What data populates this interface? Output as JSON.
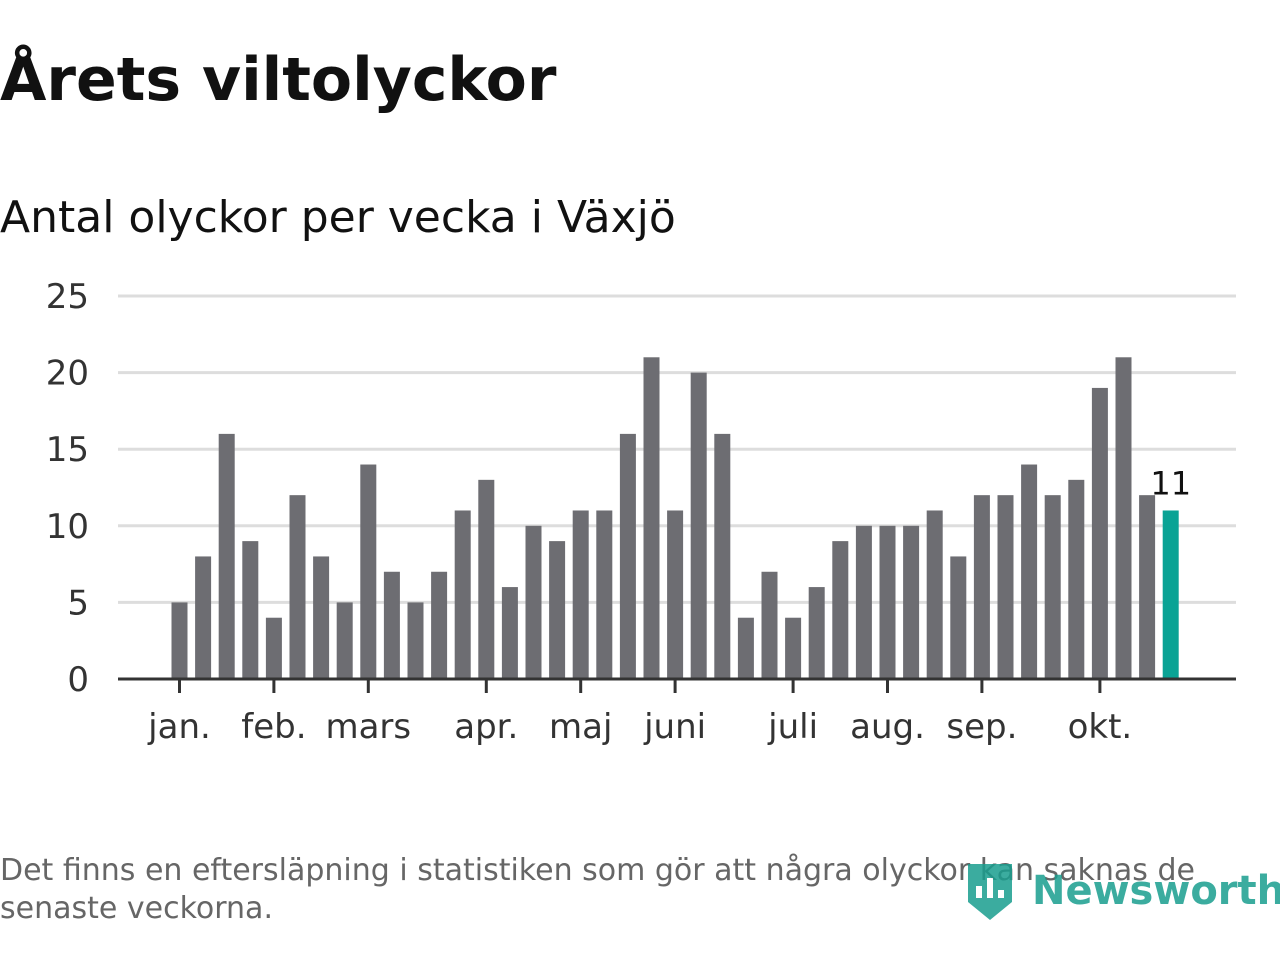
{
  "header": {
    "title": "Årets viltolyckor",
    "subtitle": "Antal olyckor per vecka i Växjö"
  },
  "chart_data": {
    "type": "bar",
    "title": "Årets viltolyckor",
    "subtitle": "Antal olyckor per vecka i Växjö",
    "xlabel": "",
    "ylabel": "",
    "ylim": [
      0,
      25
    ],
    "y_ticks": [
      0,
      5,
      10,
      15,
      20,
      25
    ],
    "grid": true,
    "legend": "none",
    "x_ticks": [
      {
        "label": "jan.",
        "bar_index": 0
      },
      {
        "label": "feb.",
        "bar_index": 4
      },
      {
        "label": "mars",
        "bar_index": 8
      },
      {
        "label": "apr.",
        "bar_index": 13
      },
      {
        "label": "maj",
        "bar_index": 17
      },
      {
        "label": "juni",
        "bar_index": 21
      },
      {
        "label": "juli",
        "bar_index": 26
      },
      {
        "label": "aug.",
        "bar_index": 30
      },
      {
        "label": "sep.",
        "bar_index": 34
      },
      {
        "label": "okt.",
        "bar_index": 39
      }
    ],
    "values": [
      5,
      8,
      16,
      9,
      4,
      12,
      8,
      5,
      14,
      7,
      5,
      7,
      11,
      13,
      6,
      10,
      9,
      11,
      11,
      16,
      21,
      11,
      20,
      16,
      4,
      7,
      4,
      6,
      9,
      10,
      10,
      10,
      11,
      8,
      12,
      12,
      14,
      12,
      13,
      19,
      21,
      12,
      11
    ],
    "highlight_index": 42,
    "highlight_label": "11",
    "colors": {
      "bar": "#6d6d72",
      "highlight": "#0aa395",
      "grid": "#dddddd",
      "axis": "#333333"
    }
  },
  "footer": {
    "note": "Det finns en eftersläpning i statistiken som gör att några olyckor kan saknas de senaste veckorna.",
    "brand": "Newsworthy",
    "brand_icon": "newsworthy-logo-icon",
    "brand_color": "#1a9e8f"
  }
}
